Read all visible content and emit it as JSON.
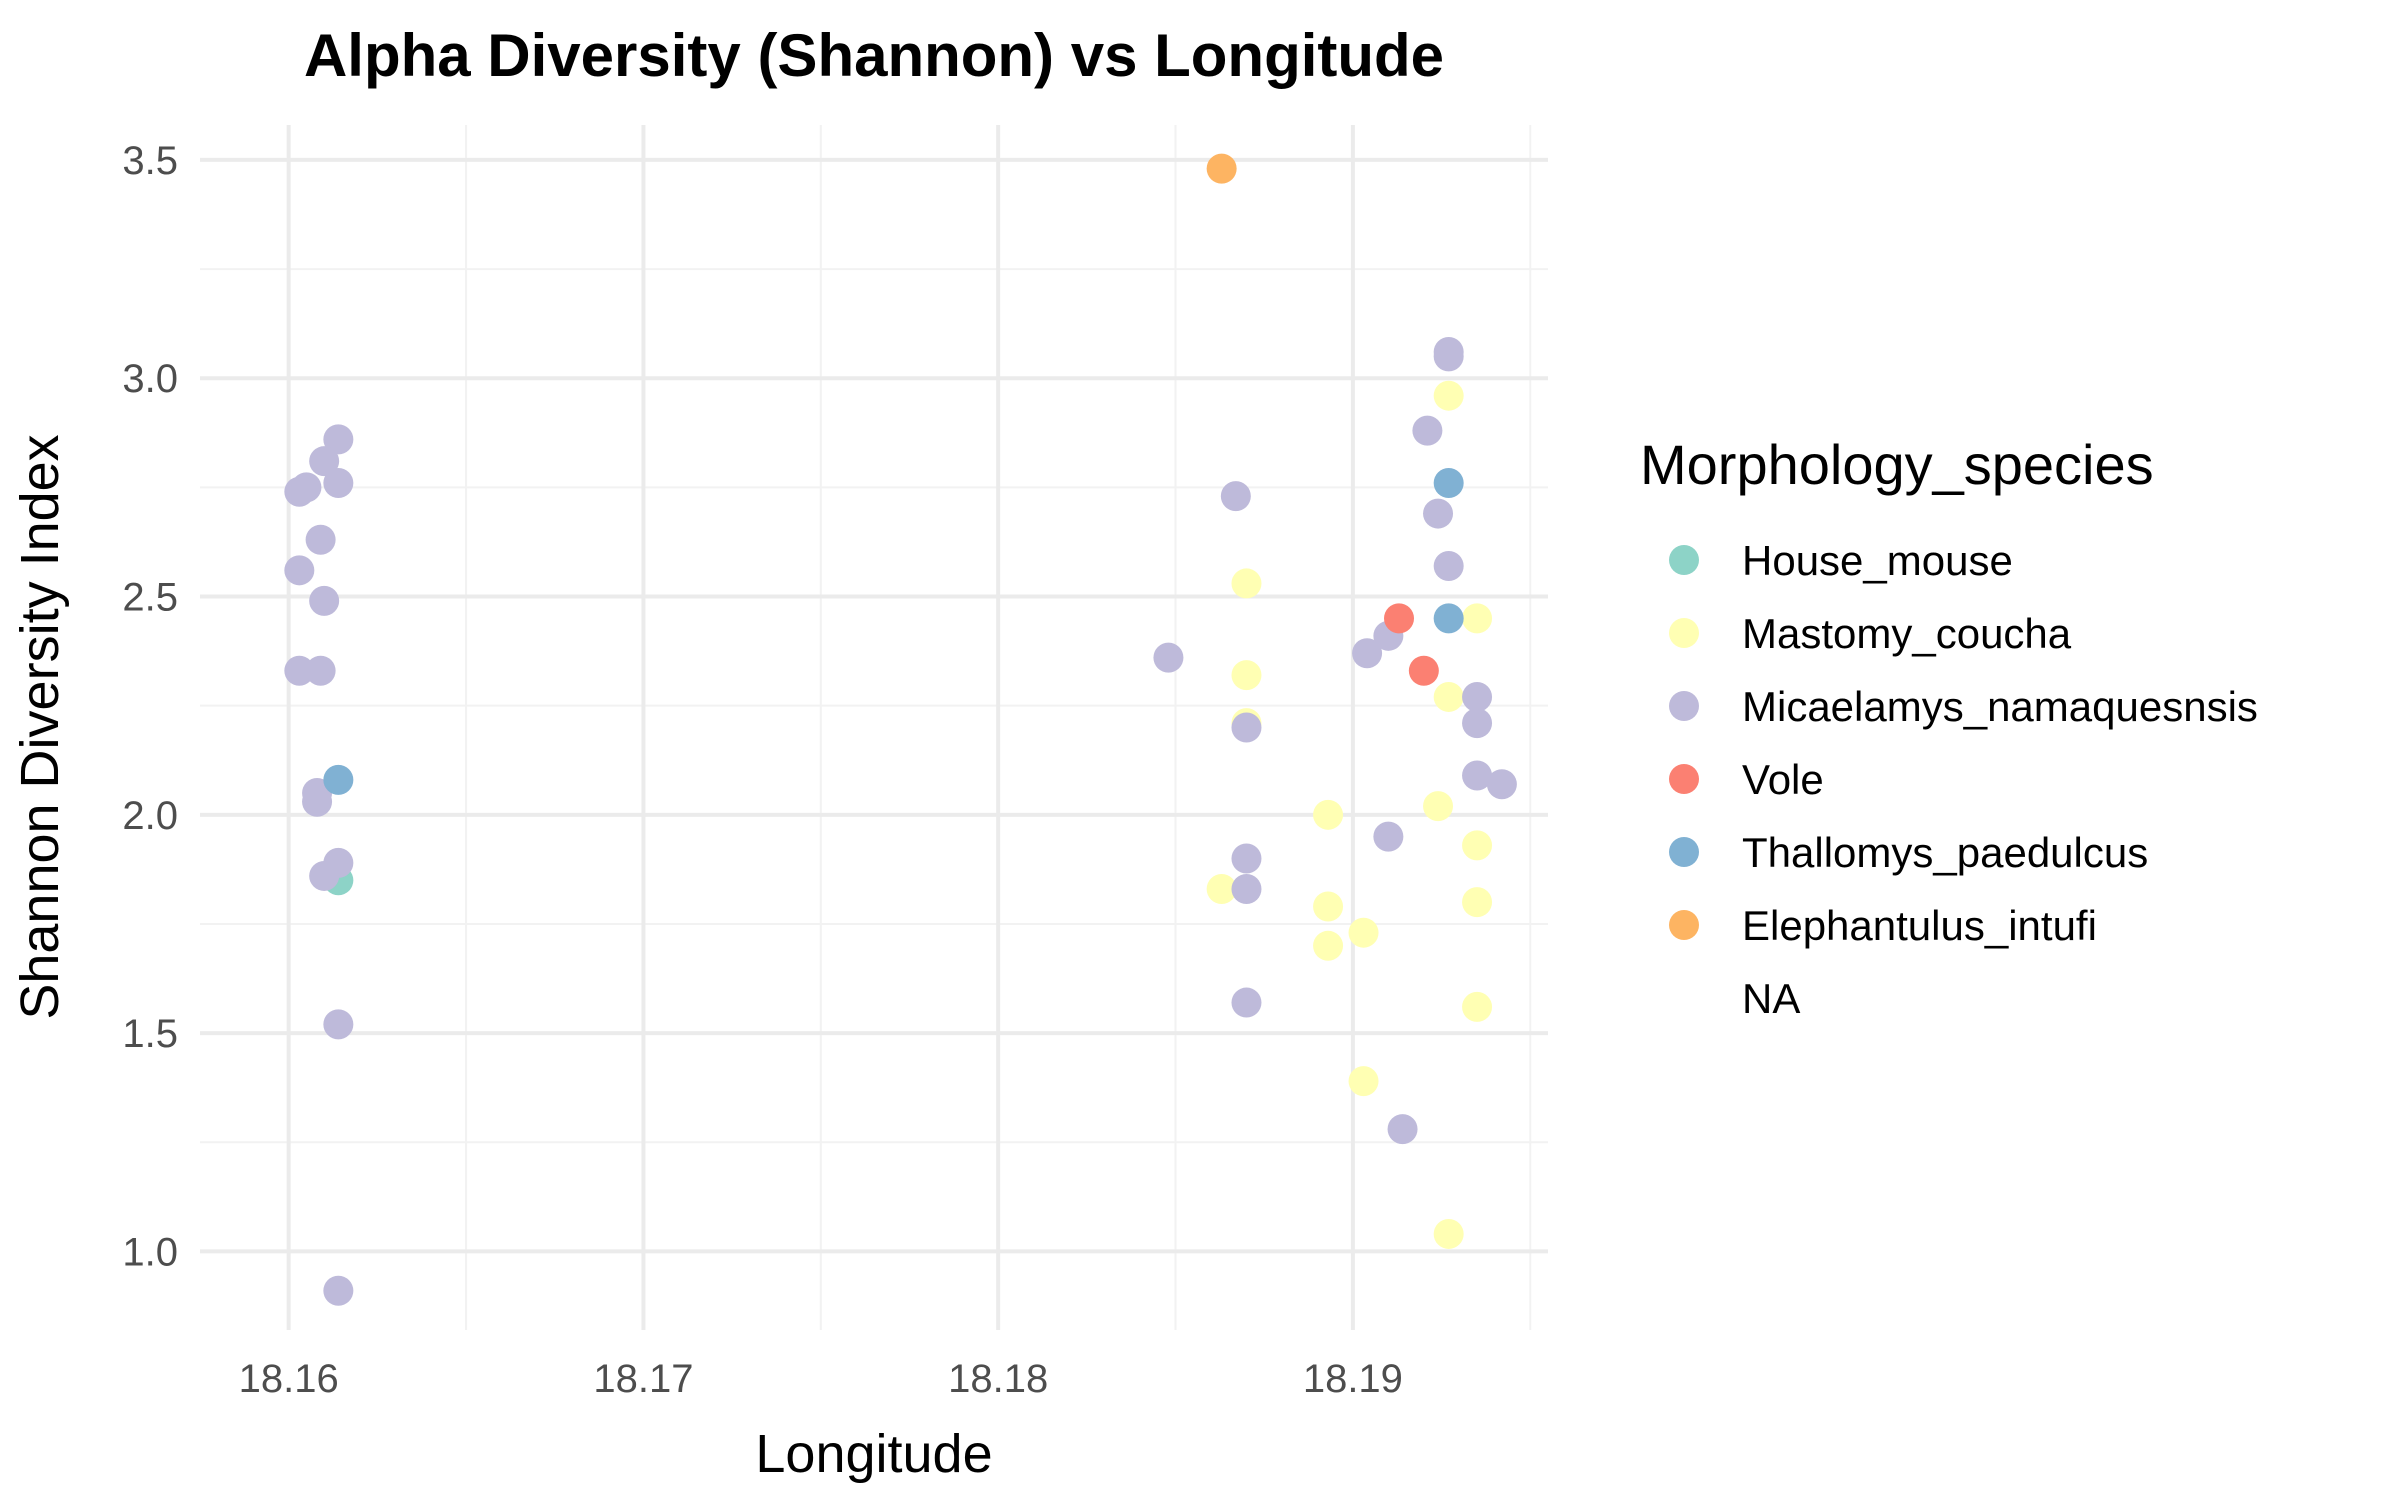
{
  "chart_data": {
    "type": "scatter",
    "title": "Alpha Diversity (Shannon) vs Longitude",
    "xlabel": "Longitude",
    "ylabel": "Shannon Diversity Index",
    "xlim": [
      18.1575,
      18.1955
    ],
    "ylim": [
      0.82,
      3.58
    ],
    "x_ticks": [
      18.16,
      18.17,
      18.18,
      18.19
    ],
    "x_tick_labels": [
      "18.16",
      "18.17",
      "18.18",
      "18.19"
    ],
    "y_ticks": [
      1.0,
      1.5,
      2.0,
      2.5,
      3.0,
      3.5
    ],
    "y_tick_labels": [
      "1.0",
      "1.5",
      "2.0",
      "2.5",
      "3.0",
      "3.5"
    ],
    "grid": true,
    "legend_title": "Morphology_species",
    "legend_position": "right",
    "series": [
      {
        "name": "House_mouse",
        "color": "#8DD3C7",
        "points": [
          [
            18.1614,
            1.85
          ]
        ]
      },
      {
        "name": "Mastomy_coucha",
        "color": "#FFFFB3",
        "points": [
          [
            18.1927,
            2.96
          ],
          [
            18.1935,
            2.45
          ],
          [
            18.1927,
            2.27
          ],
          [
            18.1924,
            2.02
          ],
          [
            18.1935,
            1.93
          ],
          [
            18.1935,
            1.8
          ],
          [
            18.1935,
            1.56
          ],
          [
            18.1927,
            1.04
          ],
          [
            18.187,
            2.53
          ],
          [
            18.187,
            2.32
          ],
          [
            18.187,
            2.21
          ],
          [
            18.1863,
            1.83
          ],
          [
            18.1893,
            2.0
          ],
          [
            18.1893,
            1.79
          ],
          [
            18.1893,
            1.7
          ],
          [
            18.1903,
            1.73
          ],
          [
            18.1903,
            1.39
          ]
        ]
      },
      {
        "name": "Micaelamys_namaquesnsis",
        "color": "#BEBADA",
        "points": [
          [
            18.1614,
            2.86
          ],
          [
            18.161,
            2.81
          ],
          [
            18.1605,
            2.75
          ],
          [
            18.1603,
            2.74
          ],
          [
            18.1614,
            2.76
          ],
          [
            18.1609,
            2.63
          ],
          [
            18.1603,
            2.56
          ],
          [
            18.161,
            2.49
          ],
          [
            18.1603,
            2.33
          ],
          [
            18.1609,
            2.33
          ],
          [
            18.1608,
            2.05
          ],
          [
            18.1608,
            2.03
          ],
          [
            18.1614,
            1.89
          ],
          [
            18.161,
            1.86
          ],
          [
            18.1614,
            1.52
          ],
          [
            18.1614,
            0.91
          ],
          [
            18.1867,
            2.73
          ],
          [
            18.1848,
            2.36
          ],
          [
            18.187,
            2.2
          ],
          [
            18.187,
            1.9
          ],
          [
            18.187,
            1.83
          ],
          [
            18.187,
            1.57
          ],
          [
            18.1927,
            3.06
          ],
          [
            18.1927,
            3.05
          ],
          [
            18.1921,
            2.88
          ],
          [
            18.1924,
            2.69
          ],
          [
            18.1927,
            2.57
          ],
          [
            18.191,
            2.41
          ],
          [
            18.1904,
            2.37
          ],
          [
            18.1935,
            2.27
          ],
          [
            18.1935,
            2.21
          ],
          [
            18.1935,
            2.09
          ],
          [
            18.1942,
            2.07
          ],
          [
            18.191,
            1.95
          ],
          [
            18.1914,
            1.28
          ]
        ]
      },
      {
        "name": "Vole",
        "color": "#FB8072",
        "points": [
          [
            18.1913,
            2.45
          ],
          [
            18.192,
            2.33
          ]
        ]
      },
      {
        "name": "Thallomys_paedulcus",
        "color": "#80B1D3",
        "points": [
          [
            18.1614,
            2.08
          ],
          [
            18.1927,
            2.76
          ],
          [
            18.1927,
            2.45
          ]
        ]
      },
      {
        "name": "Elephantulus_intufi",
        "color": "#FDB462",
        "points": [
          [
            18.1863,
            3.48
          ]
        ]
      },
      {
        "name": "NA",
        "color": "",
        "points": []
      }
    ]
  }
}
